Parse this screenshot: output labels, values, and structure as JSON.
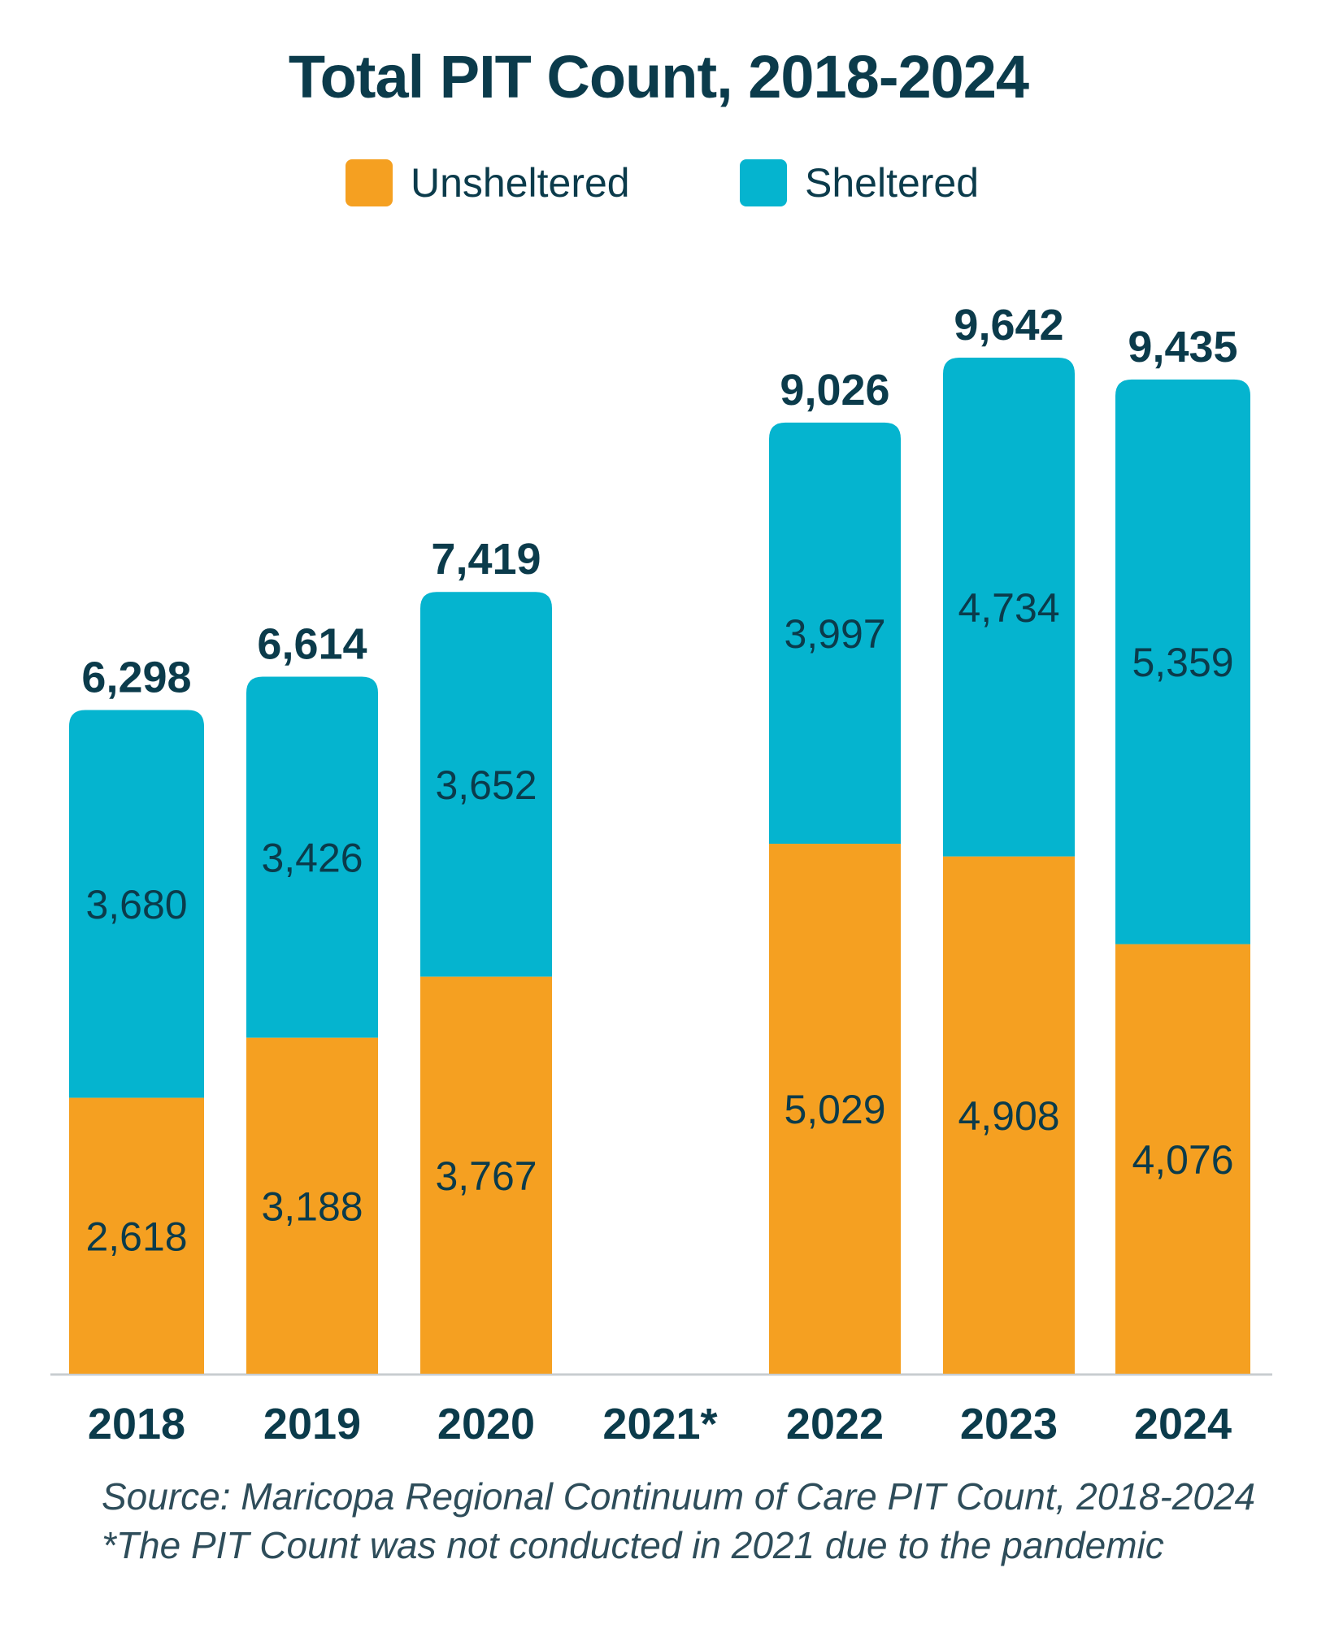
{
  "chart_data": {
    "type": "bar",
    "stacked": true,
    "title": "Total PIT Count, 2018-2024",
    "categories": [
      "2018",
      "2019",
      "2020",
      "2021*",
      "2022",
      "2023",
      "2024"
    ],
    "series": [
      {
        "name": "Unsheltered",
        "color": "#f5a021",
        "values": [
          2618,
          3188,
          3767,
          null,
          5029,
          4908,
          4076
        ],
        "labels": [
          "2,618",
          "3,188",
          "3,767",
          "",
          "5,029",
          "4,908",
          "4,076"
        ]
      },
      {
        "name": "Sheltered",
        "color": "#05b4cf",
        "values": [
          3680,
          3426,
          3652,
          null,
          3997,
          4734,
          5359
        ],
        "labels": [
          "3,680",
          "3,426",
          "3,652",
          "",
          "3,997",
          "4,734",
          "5,359"
        ]
      }
    ],
    "totals": [
      6298,
      6614,
      7419,
      null,
      9026,
      9642,
      9435
    ],
    "total_labels": [
      "6,298",
      "6,614",
      "7,419",
      "",
      "9,026",
      "9,642",
      "9,435"
    ],
    "ylim": [
      0,
      9642
    ],
    "xlabel": "",
    "ylabel": "",
    "legend_position": "top-center",
    "grid": false
  },
  "legend": {
    "unsheltered": "Unsheltered",
    "sheltered": "Sheltered"
  },
  "source": {
    "line1": "Source: Maricopa Regional Continuum of Care PIT Count, 2018-2024",
    "line2": "*The PIT Count was not conducted in 2021 due to the pandemic"
  },
  "colors": {
    "unsheltered": "#f5a021",
    "sheltered": "#05b4cf",
    "text": "#0b3b4b",
    "axis": "#c8cdd0"
  }
}
